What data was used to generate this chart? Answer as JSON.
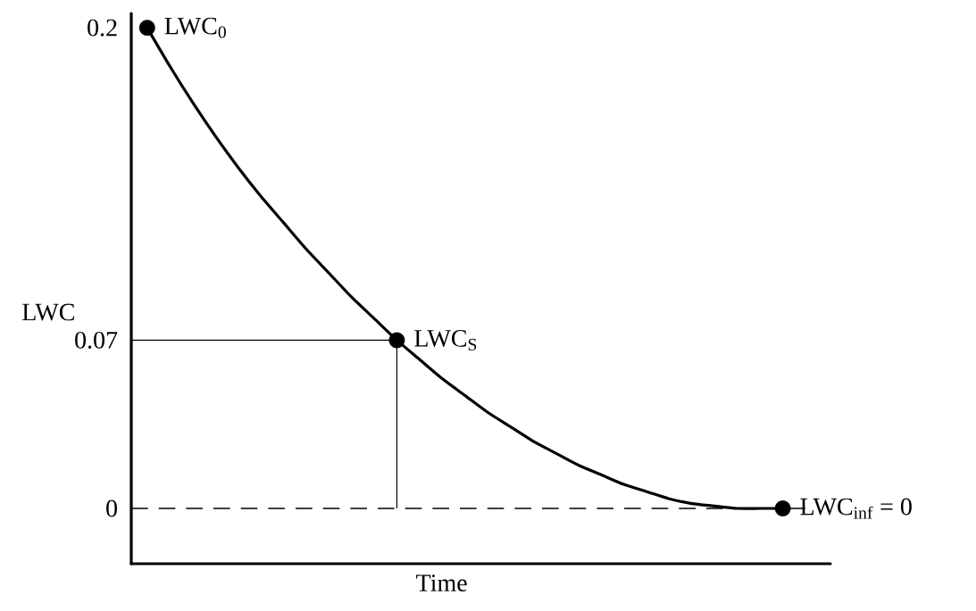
{
  "chart_data": {
    "type": "line",
    "xlabel": "Time",
    "ylabel": "LWC",
    "categories": [
      null,
      null,
      null,
      null,
      null,
      null,
      null,
      null,
      null,
      null,
      null,
      null,
      null,
      null,
      null,
      null,
      null,
      null,
      null,
      null,
      null,
      null,
      null,
      null,
      null,
      null,
      null,
      null,
      null
    ],
    "series": [
      {
        "color": "#000000",
        "line_style": "solid",
        "values": [
          0.2,
          0.184,
          0.169,
          0.155,
          0.142,
          0.13,
          0.119,
          0.108,
          0.098,
          0.088,
          0.079,
          0.07,
          0.062,
          0.054,
          0.047,
          0.04,
          0.034,
          0.028,
          0.023,
          0.018,
          0.014,
          0.01,
          0.007,
          0.004,
          0.002,
          0.001,
          0.0,
          0.0,
          0.0
        ]
      },
      {
        "type": "scatter",
        "color": "#000000",
        "marker": "circle",
        "values": [
          0.2,
          null,
          null,
          null,
          null,
          null,
          null,
          null,
          null,
          null,
          null,
          0.07,
          null,
          null,
          null,
          null,
          null,
          null,
          null,
          null,
          null,
          null,
          null,
          null,
          null,
          null,
          null,
          null,
          0.0
        ]
      }
    ],
    "ylim": [
      -0.023,
      0.206
    ],
    "yticks": [
      0,
      0.07,
      0.2
    ],
    "ref_lines": [
      {
        "axis": "y",
        "value": 0.07,
        "line_style": "solid",
        "color": "#000000"
      },
      {
        "axis": "y",
        "value": 0,
        "line_style": "dashed",
        "color": "#000000"
      }
    ],
    "annotations": [
      "LWC$_{0}$",
      "LWC$_{S}$",
      "LWC$_{inf}$ = 0"
    ]
  }
}
